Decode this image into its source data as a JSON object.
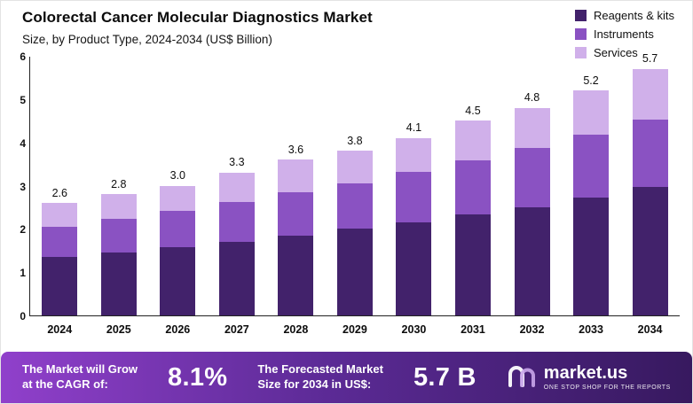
{
  "chart_data": {
    "type": "bar",
    "stacked": true,
    "title": "Colorectal Cancer Molecular Diagnostics Market",
    "subtitle": "Size, by Product Type, 2024-2034 (US$ Billion)",
    "categories": [
      "2024",
      "2025",
      "2026",
      "2027",
      "2028",
      "2029",
      "2030",
      "2031",
      "2032",
      "2033",
      "2034"
    ],
    "series": [
      {
        "name": "Reagents & kits",
        "color": "#42226b",
        "values": [
          1.35,
          1.45,
          1.57,
          1.7,
          1.85,
          2.0,
          2.15,
          2.33,
          2.5,
          2.72,
          2.97
        ]
      },
      {
        "name": "Instruments",
        "color": "#8a52c2",
        "values": [
          0.7,
          0.78,
          0.85,
          0.93,
          1.0,
          1.05,
          1.17,
          1.25,
          1.37,
          1.46,
          1.55
        ]
      },
      {
        "name": "Services",
        "color": "#d0b0ea",
        "values": [
          0.55,
          0.57,
          0.58,
          0.67,
          0.75,
          0.75,
          0.78,
          0.92,
          0.93,
          1.02,
          1.18
        ]
      }
    ],
    "totals": [
      2.6,
      2.8,
      3.0,
      3.3,
      3.6,
      3.8,
      4.1,
      4.5,
      4.8,
      5.2,
      5.7
    ],
    "total_labels": [
      "2.6",
      "2.8",
      "3.0",
      "3.3",
      "3.6",
      "3.8",
      "4.1",
      "4.5",
      "4.8",
      "5.2",
      "5.7"
    ],
    "ylim": [
      0,
      6
    ],
    "yticks": [
      0,
      1,
      2,
      3,
      4,
      5,
      6
    ],
    "grid": false,
    "legend_position": "top-right"
  },
  "banner": {
    "cagr_label_line1": "The Market will Grow",
    "cagr_label_line2": "at the CAGR of:",
    "cagr_value": "8.1%",
    "forecast_label_line1": "The Forecasted Market",
    "forecast_label_line2": "Size for 2034 in US$:",
    "forecast_value": "5.7 B",
    "brand_name": "market.us",
    "brand_tagline": "ONE STOP SHOP FOR THE REPORTS"
  }
}
